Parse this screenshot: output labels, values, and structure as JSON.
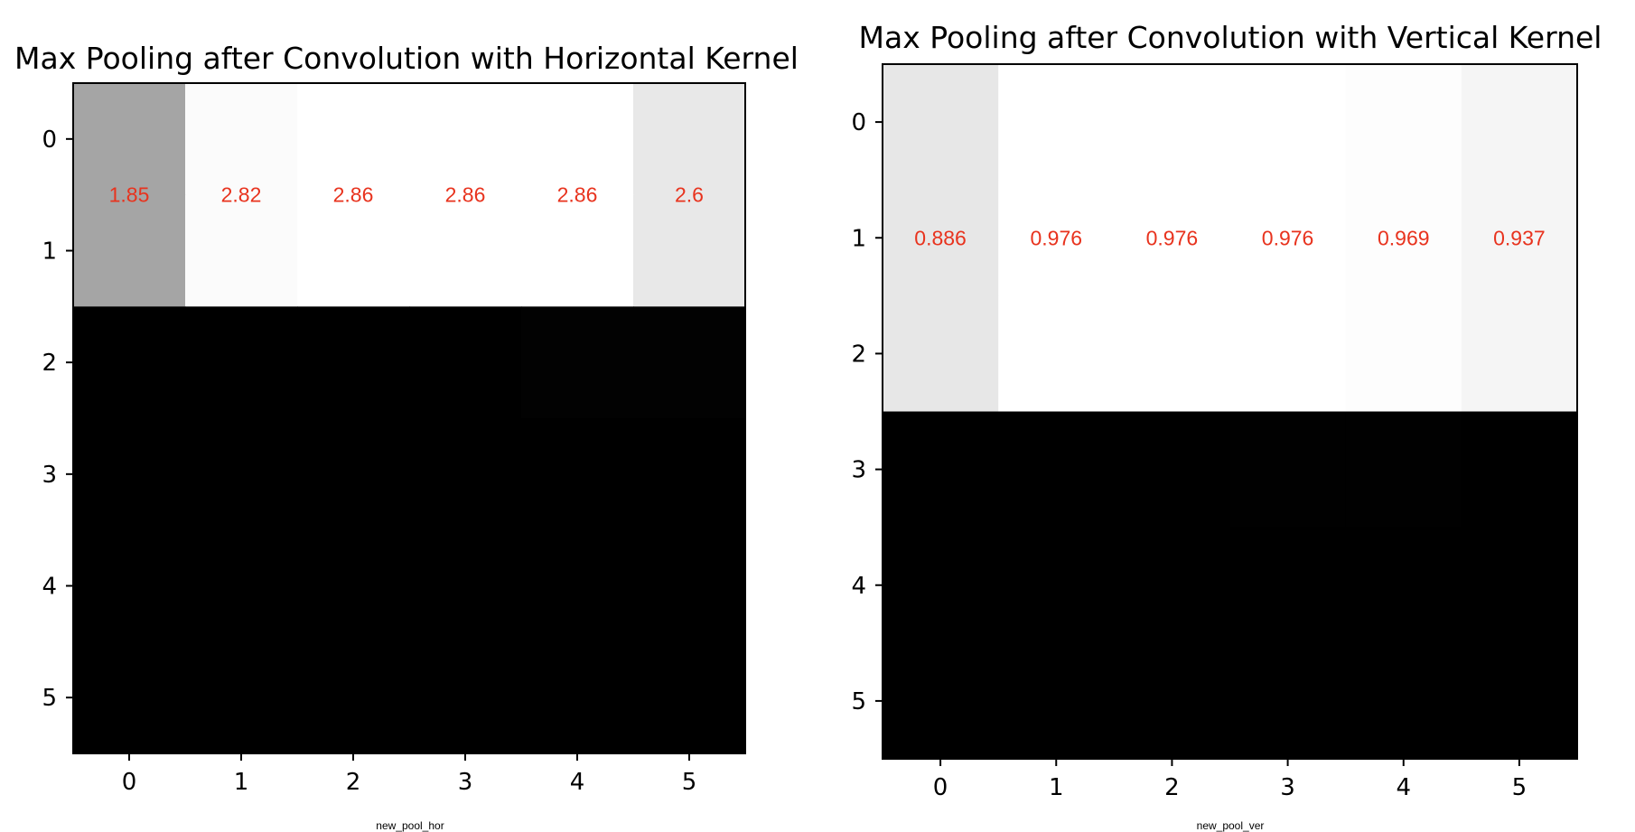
{
  "chart_data": [
    {
      "type": "heatmap",
      "title": "Max Pooling after Convolution with Horizontal Kernel",
      "caption": "new_pool_hor",
      "colormap": "gray",
      "annotation_color": "#e8331e",
      "x_ticks": [
        "0",
        "1",
        "2",
        "3",
        "4",
        "5"
      ],
      "y_ticks": [
        "0",
        "1",
        "2",
        "3",
        "4",
        "5"
      ],
      "block_rows": [
        0,
        1
      ],
      "values": [
        [
          1.85,
          2.82,
          2.86,
          2.86,
          2.86,
          2.6
        ],
        [
          1.85,
          2.82,
          2.86,
          2.86,
          2.86,
          2.6
        ],
        [
          0,
          0,
          0,
          0,
          0.02,
          0.02
        ],
        [
          0,
          0,
          0,
          0,
          0,
          0
        ],
        [
          0,
          0,
          0,
          0,
          0,
          0
        ],
        [
          0,
          0,
          0,
          0,
          0,
          0
        ]
      ],
      "labels": [
        "1.85",
        "2.82",
        "2.86",
        "2.86",
        "2.86",
        "2.6"
      ],
      "value_range": [
        0,
        2.86
      ]
    },
    {
      "type": "heatmap",
      "title": "Max Pooling after Convolution with Vertical Kernel",
      "caption": "new_pool_ver",
      "colormap": "gray",
      "annotation_color": "#e8331e",
      "x_ticks": [
        "0",
        "1",
        "2",
        "3",
        "4",
        "5"
      ],
      "y_ticks": [
        "0",
        "1",
        "2",
        "3",
        "4",
        "5"
      ],
      "block_rows": [
        0,
        1,
        2
      ],
      "values": [
        [
          0.886,
          0.976,
          0.976,
          0.976,
          0.969,
          0.937
        ],
        [
          0.886,
          0.976,
          0.976,
          0.976,
          0.969,
          0.937
        ],
        [
          0.886,
          0.976,
          0.976,
          0.976,
          0.969,
          0.937
        ],
        [
          0,
          0,
          0,
          0.005,
          0.005,
          0
        ],
        [
          0,
          0,
          0,
          0,
          0,
          0
        ],
        [
          0,
          0,
          0,
          0,
          0,
          0
        ]
      ],
      "labels": [
        "0.886",
        "0.976",
        "0.976",
        "0.976",
        "0.969",
        "0.937"
      ],
      "value_range": [
        0,
        0.976
      ]
    }
  ]
}
